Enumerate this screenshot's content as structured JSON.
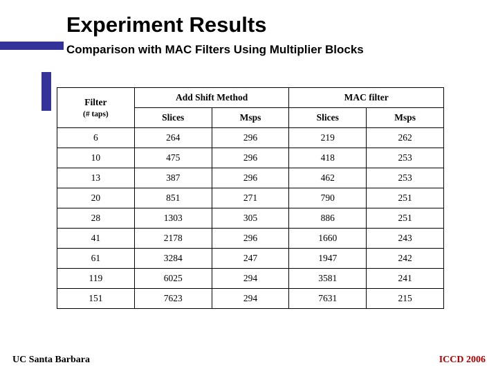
{
  "title": "Experiment Results",
  "subtitle": "Comparison with MAC Filters Using Multiplier Blocks",
  "footer_left": "UC Santa Barbara",
  "footer_right": "ICCD 2006",
  "accent_color": "#333399",
  "footer_right_color": "#b00000",
  "table": {
    "col_header_filter_line1": "Filter",
    "col_header_filter_line2": "(# taps)",
    "group_header_1": "Add Shift Method",
    "group_header_2": "MAC filter",
    "sub_header_slices": "Slices",
    "sub_header_msps": "Msps",
    "rows": [
      {
        "taps": "6",
        "as_slices": "264",
        "as_msps": "296",
        "mac_slices": "219",
        "mac_msps": "262"
      },
      {
        "taps": "10",
        "as_slices": "475",
        "as_msps": "296",
        "mac_slices": "418",
        "mac_msps": "253"
      },
      {
        "taps": "13",
        "as_slices": "387",
        "as_msps": "296",
        "mac_slices": "462",
        "mac_msps": "253"
      },
      {
        "taps": "20",
        "as_slices": "851",
        "as_msps": "271",
        "mac_slices": "790",
        "mac_msps": "251"
      },
      {
        "taps": "28",
        "as_slices": "1303",
        "as_msps": "305",
        "mac_slices": "886",
        "mac_msps": "251"
      },
      {
        "taps": "41",
        "as_slices": "2178",
        "as_msps": "296",
        "mac_slices": "1660",
        "mac_msps": "243"
      },
      {
        "taps": "61",
        "as_slices": "3284",
        "as_msps": "247",
        "mac_slices": "1947",
        "mac_msps": "242"
      },
      {
        "taps": "119",
        "as_slices": "6025",
        "as_msps": "294",
        "mac_slices": "3581",
        "mac_msps": "241"
      },
      {
        "taps": "151",
        "as_slices": "7623",
        "as_msps": "294",
        "mac_slices": "7631",
        "mac_msps": "215"
      }
    ]
  }
}
